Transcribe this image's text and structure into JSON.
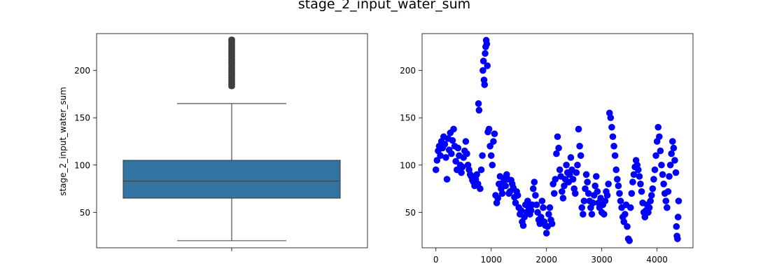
{
  "figure": {
    "suptitle": "stage_2_input_water_sum"
  },
  "chart_data": [
    {
      "type": "box",
      "ylabel": "stage_2_input_water_sum",
      "xlabel": "",
      "ylim": [
        12.5,
        239
      ],
      "yticks": [
        50,
        100,
        150,
        200
      ],
      "ytick_labels": [
        "50",
        "100",
        "150",
        "200"
      ],
      "box_color": "#3274a1",
      "edge_color": "#3f3f3f",
      "stats": {
        "whisker_low": 20,
        "q1": 65,
        "median": 83,
        "q3": 105,
        "whisker_high": 165
      },
      "outliers": [
        183,
        185,
        187,
        189,
        191,
        193,
        195,
        197,
        199,
        201,
        203,
        205,
        207,
        209,
        211,
        213,
        215,
        217,
        219,
        221,
        223,
        225,
        227,
        229,
        231,
        233
      ]
    },
    {
      "type": "scatter",
      "marker_color": "#0000ff",
      "xlim": [
        -250,
        4650
      ],
      "ylim": [
        12.5,
        239
      ],
      "xticks": [
        0,
        1000,
        2000,
        3000,
        4000
      ],
      "xtick_labels": [
        "0",
        "1000",
        "2000",
        "3000",
        "4000"
      ],
      "yticks": [
        50,
        100,
        150,
        200
      ],
      "ytick_labels": [
        "50",
        "100",
        "150",
        "200"
      ],
      "points": [
        [
          0,
          95
        ],
        [
          20,
          105
        ],
        [
          40,
          115
        ],
        [
          60,
          120
        ],
        [
          80,
          110
        ],
        [
          100,
          125
        ],
        [
          120,
          118
        ],
        [
          140,
          130
        ],
        [
          160,
          122
        ],
        [
          180,
          108
        ],
        [
          200,
          85
        ],
        [
          220,
          128
        ],
        [
          240,
          116
        ],
        [
          260,
          134
        ],
        [
          280,
          112
        ],
        [
          300,
          126
        ],
        [
          320,
          138
        ],
        [
          340,
          120
        ],
        [
          360,
          104
        ],
        [
          380,
          95
        ],
        [
          400,
          118
        ],
        [
          420,
          110
        ],
        [
          440,
          100
        ],
        [
          460,
          92
        ],
        [
          480,
          98
        ],
        [
          500,
          108
        ],
        [
          520,
          115
        ],
        [
          540,
          125
        ],
        [
          560,
          112
        ],
        [
          580,
          100
        ],
        [
          600,
          95
        ],
        [
          620,
          90
        ],
        [
          640,
          88
        ],
        [
          660,
          84
        ],
        [
          680,
          82
        ],
        [
          700,
          78
        ],
        [
          720,
          85
        ],
        [
          740,
          90
        ],
        [
          760,
          80
        ],
        [
          770,
          165
        ],
        [
          780,
          158
        ],
        [
          800,
          75
        ],
        [
          820,
          95
        ],
        [
          840,
          110
        ],
        [
          850,
          200
        ],
        [
          860,
          210
        ],
        [
          870,
          190
        ],
        [
          880,
          185
        ],
        [
          890,
          218
        ],
        [
          900,
          225
        ],
        [
          910,
          232
        ],
        [
          920,
          228
        ],
        [
          930,
          205
        ],
        [
          940,
          135
        ],
        [
          960,
          138
        ],
        [
          980,
          120
        ],
        [
          1000,
          110
        ],
        [
          1020,
          100
        ],
        [
          1040,
          125
        ],
        [
          1060,
          133
        ],
        [
          1080,
          68
        ],
        [
          1100,
          60
        ],
        [
          1120,
          65
        ],
        [
          1140,
          80
        ],
        [
          1160,
          88
        ],
        [
          1180,
          75
        ],
        [
          1200,
          70
        ],
        [
          1220,
          82
        ],
        [
          1240,
          86
        ],
        [
          1260,
          78
        ],
        [
          1280,
          90
        ],
        [
          1300,
          85
        ],
        [
          1320,
          70
        ],
        [
          1340,
          72
        ],
        [
          1360,
          84
        ],
        [
          1380,
          80
        ],
        [
          1400,
          76
        ],
        [
          1420,
          66
        ],
        [
          1440,
          60
        ],
        [
          1460,
          72
        ],
        [
          1480,
          68
        ],
        [
          1500,
          55
        ],
        [
          1520,
          48
        ],
        [
          1540,
          52
        ],
        [
          1560,
          40
        ],
        [
          1580,
          36
        ],
        [
          1600,
          45
        ],
        [
          1620,
          58
        ],
        [
          1640,
          50
        ],
        [
          1660,
          62
        ],
        [
          1680,
          55
        ],
        [
          1700,
          48
        ],
        [
          1720,
          52
        ],
        [
          1740,
          58
        ],
        [
          1760,
          75
        ],
        [
          1780,
          82
        ],
        [
          1800,
          68
        ],
        [
          1820,
          58
        ],
        [
          1840,
          50
        ],
        [
          1860,
          42
        ],
        [
          1880,
          38
        ],
        [
          1900,
          45
        ],
        [
          1920,
          62
        ],
        [
          1940,
          55
        ],
        [
          1960,
          40
        ],
        [
          1980,
          36
        ],
        [
          2000,
          28
        ],
        [
          2020,
          35
        ],
        [
          2040,
          48
        ],
        [
          2060,
          55
        ],
        [
          2080,
          42
        ],
        [
          2100,
          38
        ],
        [
          2120,
          80
        ],
        [
          2140,
          70
        ],
        [
          2160,
          85
        ],
        [
          2180,
          112
        ],
        [
          2200,
          130
        ],
        [
          2220,
          118
        ],
        [
          2240,
          95
        ],
        [
          2260,
          88
        ],
        [
          2280,
          72
        ],
        [
          2300,
          65
        ],
        [
          2320,
          78
        ],
        [
          2340,
          85
        ],
        [
          2360,
          100
        ],
        [
          2380,
          92
        ],
        [
          2400,
          82
        ],
        [
          2420,
          90
        ],
        [
          2440,
          108
        ],
        [
          2460,
          95
        ],
        [
          2480,
          85
        ],
        [
          2500,
          75
        ],
        [
          2520,
          70
        ],
        [
          2540,
          92
        ],
        [
          2560,
          100
        ],
        [
          2580,
          138
        ],
        [
          2600,
          120
        ],
        [
          2620,
          110
        ],
        [
          2640,
          55
        ],
        [
          2660,
          48
        ],
        [
          2680,
          62
        ],
        [
          2700,
          75
        ],
        [
          2720,
          90
        ],
        [
          2740,
          82
        ],
        [
          2760,
          70
        ],
        [
          2780,
          62
        ],
        [
          2800,
          55
        ],
        [
          2820,
          48
        ],
        [
          2840,
          60
        ],
        [
          2860,
          68
        ],
        [
          2880,
          78
        ],
        [
          2900,
          88
        ],
        [
          2920,
          72
        ],
        [
          2940,
          60
        ],
        [
          2960,
          55
        ],
        [
          2980,
          65
        ],
        [
          3000,
          50
        ],
        [
          3020,
          58
        ],
        [
          3040,
          48
        ],
        [
          3060,
          62
        ],
        [
          3080,
          72
        ],
        [
          3100,
          68
        ],
        [
          3120,
          80
        ],
        [
          3140,
          155
        ],
        [
          3160,
          150
        ],
        [
          3180,
          140
        ],
        [
          3200,
          130
        ],
        [
          3220,
          120
        ],
        [
          3240,
          110
        ],
        [
          3260,
          95
        ],
        [
          3280,
          85
        ],
        [
          3300,
          78
        ],
        [
          3320,
          70
        ],
        [
          3340,
          62
        ],
        [
          3360,
          55
        ],
        [
          3380,
          45
        ],
        [
          3400,
          40
        ],
        [
          3420,
          48
        ],
        [
          3440,
          58
        ],
        [
          3460,
          35
        ],
        [
          3480,
          22
        ],
        [
          3500,
          20
        ],
        [
          3520,
          55
        ],
        [
          3540,
          70
        ],
        [
          3560,
          82
        ],
        [
          3580,
          90
        ],
        [
          3600,
          98
        ],
        [
          3620,
          105
        ],
        [
          3640,
          100
        ],
        [
          3660,
          95
        ],
        [
          3680,
          88
        ],
        [
          3700,
          80
        ],
        [
          3720,
          72
        ],
        [
          3740,
          60
        ],
        [
          3760,
          50
        ],
        [
          3780,
          45
        ],
        [
          3800,
          52
        ],
        [
          3820,
          58
        ],
        [
          3840,
          50
        ],
        [
          3860,
          55
        ],
        [
          3880,
          62
        ],
        [
          3900,
          68
        ],
        [
          3920,
          75
        ],
        [
          3940,
          85
        ],
        [
          3960,
          95
        ],
        [
          3980,
          110
        ],
        [
          4000,
          125
        ],
        [
          4020,
          140
        ],
        [
          4040,
          130
        ],
        [
          4060,
          115
        ],
        [
          4080,
          100
        ],
        [
          4100,
          90
        ],
        [
          4120,
          80
        ],
        [
          4140,
          70
        ],
        [
          4160,
          62
        ],
        [
          4180,
          55
        ],
        [
          4200,
          72
        ],
        [
          4220,
          88
        ],
        [
          4240,
          100
        ],
        [
          4260,
          112
        ],
        [
          4280,
          125
        ],
        [
          4300,
          118
        ],
        [
          4320,
          105
        ],
        [
          4340,
          92
        ],
        [
          4350,
          35
        ],
        [
          4360,
          25
        ],
        [
          4370,
          22
        ],
        [
          4380,
          45
        ],
        [
          4390,
          62
        ]
      ]
    }
  ]
}
